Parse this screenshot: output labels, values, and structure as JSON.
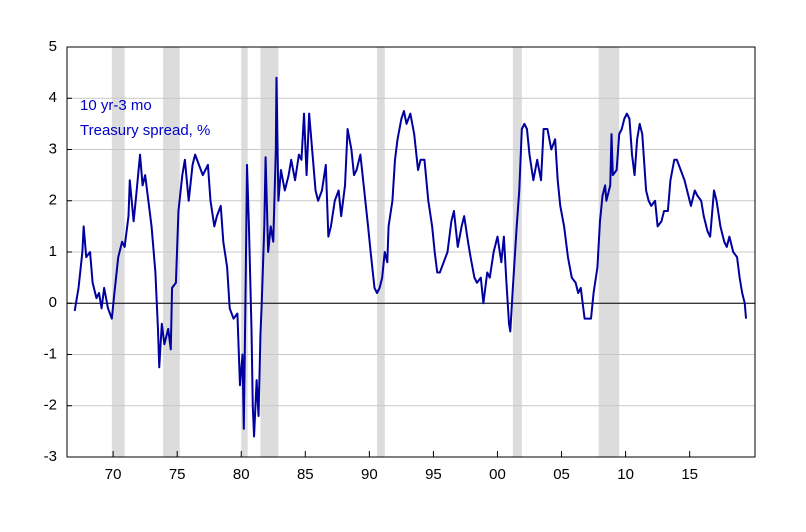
{
  "chart_data": {
    "type": "line",
    "annotations": [
      "10 yr-3 mo",
      "Treasury spread, %"
    ],
    "annotation_color": "#0000c8",
    "x": [
      1967.0,
      1967.3,
      1967.6,
      1967.7,
      1967.9,
      1968.2,
      1968.4,
      1968.7,
      1968.9,
      1969.1,
      1969.3,
      1969.6,
      1969.9,
      1970.1,
      1970.4,
      1970.7,
      1970.9,
      1971.2,
      1971.3,
      1971.6,
      1971.8,
      1972.1,
      1972.3,
      1972.5,
      1972.8,
      1973.0,
      1973.3,
      1973.5,
      1973.6,
      1973.8,
      1974.0,
      1974.3,
      1974.5,
      1974.6,
      1974.9,
      1975.1,
      1975.4,
      1975.6,
      1975.9,
      1976.2,
      1976.4,
      1976.7,
      1977.0,
      1977.4,
      1977.6,
      1977.9,
      1978.1,
      1978.4,
      1978.6,
      1978.9,
      1979.1,
      1979.4,
      1979.7,
      1979.9,
      1980.1,
      1980.2,
      1980.35,
      1980.45,
      1980.6,
      1980.8,
      1980.9,
      1981.0,
      1981.2,
      1981.35,
      1981.5,
      1981.6,
      1981.8,
      1981.9,
      1982.1,
      1982.3,
      1982.5,
      1982.7,
      1982.75,
      1982.9,
      1983.1,
      1983.4,
      1983.7,
      1983.9,
      1984.2,
      1984.5,
      1984.7,
      1984.9,
      1985.1,
      1985.3,
      1985.6,
      1985.8,
      1986.0,
      1986.3,
      1986.6,
      1986.8,
      1987.0,
      1987.3,
      1987.6,
      1987.8,
      1988.1,
      1988.3,
      1988.6,
      1988.8,
      1989.0,
      1989.3,
      1989.6,
      1989.9,
      1990.1,
      1990.4,
      1990.6,
      1990.8,
      1991.0,
      1991.2,
      1991.4,
      1991.5,
      1991.8,
      1992.0,
      1992.2,
      1992.5,
      1992.7,
      1992.9,
      1993.2,
      1993.5,
      1993.8,
      1994.0,
      1994.3,
      1994.6,
      1994.9,
      1995.1,
      1995.3,
      1995.5,
      1995.8,
      1996.1,
      1996.4,
      1996.6,
      1996.9,
      1997.2,
      1997.4,
      1997.7,
      1997.9,
      1998.2,
      1998.4,
      1998.7,
      1998.9,
      1999.2,
      1999.4,
      1999.7,
      2000.0,
      2000.3,
      2000.5,
      2000.7,
      2000.9,
      2001.0,
      2001.2,
      2001.5,
      2001.7,
      2001.9,
      2002.1,
      2002.3,
      2002.5,
      2002.8,
      2003.1,
      2003.4,
      2003.6,
      2003.9,
      2004.2,
      2004.5,
      2004.7,
      2004.9,
      2005.2,
      2005.5,
      2005.8,
      2006.1,
      2006.3,
      2006.5,
      2006.8,
      2007.0,
      2007.3,
      2007.5,
      2007.8,
      2008.0,
      2008.2,
      2008.4,
      2008.5,
      2008.8,
      2008.9,
      2009.0,
      2009.3,
      2009.5,
      2009.7,
      2009.9,
      2010.1,
      2010.3,
      2010.5,
      2010.7,
      2010.9,
      2011.1,
      2011.3,
      2011.6,
      2011.8,
      2012.0,
      2012.3,
      2012.5,
      2012.8,
      2013.0,
      2013.3,
      2013.5,
      2013.8,
      2014.0,
      2014.3,
      2014.6,
      2014.9,
      2015.1,
      2015.4,
      2015.6,
      2015.9,
      2016.1,
      2016.4,
      2016.6,
      2016.9,
      2017.1,
      2017.4,
      2017.7,
      2017.9,
      2018.1,
      2018.4,
      2018.7,
      2018.9,
      2019.1,
      2019.3,
      2019.4
    ],
    "series": [
      {
        "color": "#0000a0",
        "values": [
          -0.15,
          0.3,
          1.0,
          1.5,
          0.9,
          1.0,
          0.4,
          0.1,
          0.2,
          -0.1,
          0.3,
          -0.1,
          -0.3,
          0.2,
          0.9,
          1.2,
          1.1,
          1.7,
          2.4,
          1.6,
          2.1,
          2.9,
          2.3,
          2.5,
          1.9,
          1.5,
          0.6,
          -0.5,
          -1.25,
          -0.4,
          -0.8,
          -0.5,
          -0.9,
          0.3,
          0.4,
          1.8,
          2.5,
          2.8,
          2.0,
          2.7,
          2.9,
          2.7,
          2.5,
          2.7,
          2.0,
          1.5,
          1.7,
          1.9,
          1.2,
          0.7,
          -0.1,
          -0.3,
          -0.2,
          -1.6,
          -1.0,
          -2.45,
          0.5,
          2.7,
          1.5,
          -0.5,
          -2.0,
          -2.6,
          -1.5,
          -2.2,
          -0.6,
          0.0,
          1.5,
          2.85,
          1.0,
          1.5,
          1.2,
          3.0,
          4.4,
          2.0,
          2.6,
          2.2,
          2.5,
          2.8,
          2.4,
          2.9,
          2.8,
          3.7,
          2.5,
          3.7,
          2.8,
          2.2,
          2.0,
          2.2,
          2.7,
          1.3,
          1.5,
          2.0,
          2.2,
          1.7,
          2.3,
          3.4,
          3.0,
          2.5,
          2.6,
          2.9,
          2.2,
          1.5,
          1.0,
          0.3,
          0.2,
          0.3,
          0.5,
          1.0,
          0.8,
          1.5,
          2.0,
          2.8,
          3.2,
          3.6,
          3.75,
          3.5,
          3.7,
          3.3,
          2.6,
          2.8,
          2.8,
          2.0,
          1.5,
          1.0,
          0.6,
          0.6,
          0.8,
          1.0,
          1.6,
          1.8,
          1.1,
          1.5,
          1.7,
          1.2,
          0.9,
          0.5,
          0.4,
          0.5,
          0.0,
          0.6,
          0.5,
          1.0,
          1.3,
          0.8,
          1.3,
          0.4,
          -0.4,
          -0.55,
          0.3,
          1.5,
          2.2,
          3.4,
          3.5,
          3.4,
          2.9,
          2.4,
          2.8,
          2.4,
          3.4,
          3.4,
          3.0,
          3.2,
          2.4,
          1.9,
          1.5,
          0.9,
          0.5,
          0.4,
          0.2,
          0.3,
          -0.3,
          -0.3,
          -0.3,
          0.2,
          0.7,
          1.6,
          2.1,
          2.3,
          2.0,
          2.3,
          3.3,
          2.5,
          2.6,
          3.3,
          3.4,
          3.6,
          3.7,
          3.6,
          2.9,
          2.5,
          3.2,
          3.5,
          3.3,
          2.2,
          2.0,
          1.9,
          2.0,
          1.5,
          1.6,
          1.8,
          1.8,
          2.4,
          2.8,
          2.8,
          2.6,
          2.4,
          2.1,
          1.9,
          2.2,
          2.1,
          2.0,
          1.7,
          1.4,
          1.3,
          2.2,
          2.0,
          1.5,
          1.2,
          1.1,
          1.3,
          1.0,
          0.9,
          0.5,
          0.2,
          0.0,
          -0.3
        ]
      }
    ],
    "shaded_regions": [
      [
        1969.9,
        1970.9
      ],
      [
        1973.9,
        1975.2
      ],
      [
        1980.0,
        1980.5
      ],
      [
        1981.5,
        1982.9
      ],
      [
        1990.6,
        1991.2
      ],
      [
        2001.2,
        2001.9
      ],
      [
        2007.9,
        2009.5
      ]
    ],
    "shade_color": "#dcdcdc",
    "xlim": [
      1966.4,
      2020.1
    ],
    "xticks": [
      {
        "value": 1970,
        "label": "70"
      },
      {
        "value": 1975,
        "label": "75"
      },
      {
        "value": 1980,
        "label": "80"
      },
      {
        "value": 1985,
        "label": "85"
      },
      {
        "value": 1990,
        "label": "90"
      },
      {
        "value": 1995,
        "label": "95"
      },
      {
        "value": 2000,
        "label": "00"
      },
      {
        "value": 2005,
        "label": "05"
      },
      {
        "value": 2010,
        "label": "10"
      },
      {
        "value": 2015,
        "label": "15"
      }
    ],
    "ylim": [
      -3,
      5
    ],
    "yticks": [
      -3,
      -2,
      -1,
      0,
      1,
      2,
      3,
      4,
      5
    ],
    "grid": true,
    "zero_line": true
  }
}
